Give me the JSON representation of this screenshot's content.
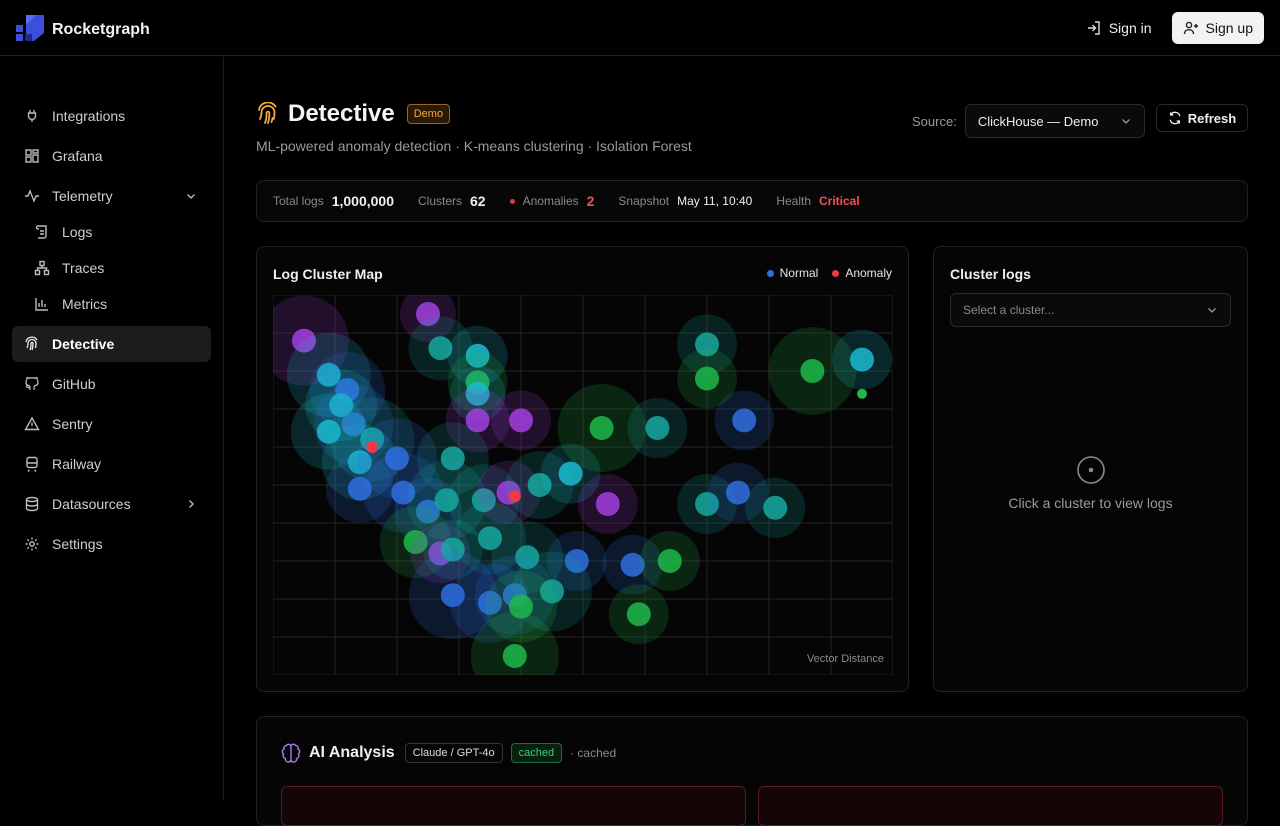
{
  "brand": {
    "name": "Rocketgraph"
  },
  "topnav": {
    "signin": "Sign in",
    "signup": "Sign up"
  },
  "sidebar": {
    "items": [
      {
        "label": "Integrations",
        "icon": "plug-icon"
      },
      {
        "label": "Grafana",
        "icon": "grid-icon"
      },
      {
        "label": "Telemetry",
        "icon": "activity-icon"
      },
      {
        "label": "Logs",
        "icon": "scroll-icon"
      },
      {
        "label": "Traces",
        "icon": "network-icon"
      },
      {
        "label": "Metrics",
        "icon": "bar-chart-icon"
      },
      {
        "label": "Detective",
        "icon": "fingerprint-icon"
      },
      {
        "label": "GitHub",
        "icon": "github-icon"
      },
      {
        "label": "Sentry",
        "icon": "triangle-icon"
      },
      {
        "label": "Railway",
        "icon": "train-icon"
      },
      {
        "label": "Datasources",
        "icon": "database-icon"
      },
      {
        "label": "Settings",
        "icon": "gear-icon"
      }
    ]
  },
  "page": {
    "title": "Detective",
    "badge": "Demo",
    "subtitle": "ML-powered anomaly detection · K-means clustering · Isolation Forest",
    "source_label": "Source:",
    "source_value": "ClickHouse — Demo",
    "refresh": "Refresh"
  },
  "stats": {
    "total_logs_label": "Total logs",
    "total_logs": "1,000,000",
    "clusters_label": "Clusters",
    "clusters": "62",
    "anomalies_label": "Anomalies",
    "anomalies": "2",
    "snapshot_label": "Snapshot",
    "snapshot": "May 11, 10:40",
    "health_label": "Health",
    "health": "Critical"
  },
  "map": {
    "title": "Log Cluster Map",
    "legend_normal": "Normal",
    "legend_anomaly": "Anomaly",
    "axis_note": "Vector Distance",
    "colors": {
      "purple": "#a23fe0",
      "cyan": "#1bbcd0",
      "green": "#1fb84a",
      "blue": "#2f6fe0",
      "teal": "#16a8a0",
      "anomaly": "#f03a44"
    }
  },
  "chart_data": {
    "type": "scatter",
    "xlabel": "",
    "ylabel": "",
    "annotation": "Vector Distance",
    "grid": true,
    "legend": "top-right",
    "series": [
      {
        "name": "Normal",
        "points": [
          [
            0.05,
            0.12,
            "purple",
            45
          ],
          [
            0.25,
            0.05,
            "purple",
            28
          ],
          [
            0.09,
            0.21,
            "cyan",
            42
          ],
          [
            0.27,
            0.14,
            "teal",
            32
          ],
          [
            0.33,
            0.16,
            "cyan",
            30
          ],
          [
            0.33,
            0.23,
            "green",
            30
          ],
          [
            0.33,
            0.26,
            "cyan",
            28
          ],
          [
            0.12,
            0.25,
            "blue",
            38
          ],
          [
            0.11,
            0.29,
            "cyan",
            36
          ],
          [
            0.13,
            0.34,
            "blue",
            40
          ],
          [
            0.09,
            0.36,
            "cyan",
            38
          ],
          [
            0.16,
            0.38,
            "teal",
            42
          ],
          [
            0.14,
            0.44,
            "cyan",
            38
          ],
          [
            0.2,
            0.43,
            "blue",
            40
          ],
          [
            0.33,
            0.33,
            "purple",
            32
          ],
          [
            0.4,
            0.33,
            "purple",
            30
          ],
          [
            0.29,
            0.43,
            "teal",
            36
          ],
          [
            0.14,
            0.51,
            "blue",
            34
          ],
          [
            0.21,
            0.52,
            "blue",
            40
          ],
          [
            0.25,
            0.57,
            "blue",
            34
          ],
          [
            0.28,
            0.54,
            "teal",
            40
          ],
          [
            0.34,
            0.54,
            "teal",
            36
          ],
          [
            0.38,
            0.52,
            "purple",
            32
          ],
          [
            0.43,
            0.5,
            "teal",
            34
          ],
          [
            0.48,
            0.47,
            "cyan",
            30
          ],
          [
            0.54,
            0.55,
            "purple",
            30
          ],
          [
            0.53,
            0.35,
            "green",
            44
          ],
          [
            0.62,
            0.35,
            "teal",
            30
          ],
          [
            0.7,
            0.13,
            "teal",
            30
          ],
          [
            0.7,
            0.22,
            "green",
            30
          ],
          [
            0.76,
            0.33,
            "blue",
            30
          ],
          [
            0.87,
            0.2,
            "green",
            44
          ],
          [
            0.95,
            0.17,
            "cyan",
            30
          ],
          [
            0.7,
            0.55,
            "teal",
            30
          ],
          [
            0.75,
            0.52,
            "blue",
            30
          ],
          [
            0.81,
            0.56,
            "teal",
            30
          ],
          [
            0.23,
            0.65,
            "green",
            36
          ],
          [
            0.27,
            0.68,
            "purple",
            30
          ],
          [
            0.29,
            0.67,
            "teal",
            30
          ],
          [
            0.35,
            0.64,
            "teal",
            36
          ],
          [
            0.41,
            0.69,
            "teal",
            36
          ],
          [
            0.49,
            0.7,
            "blue",
            30
          ],
          [
            0.58,
            0.71,
            "blue",
            30
          ],
          [
            0.64,
            0.7,
            "green",
            30
          ],
          [
            0.29,
            0.79,
            "blue",
            44
          ],
          [
            0.35,
            0.81,
            "blue",
            40
          ],
          [
            0.39,
            0.79,
            "blue",
            40
          ],
          [
            0.45,
            0.78,
            "teal",
            40
          ],
          [
            0.4,
            0.82,
            "green",
            36
          ],
          [
            0.59,
            0.84,
            "green",
            30
          ],
          [
            0.39,
            0.95,
            "green",
            44
          ]
        ]
      },
      {
        "name": "Anomaly",
        "points": [
          [
            0.16,
            0.4,
            "anomaly",
            6
          ],
          [
            0.39,
            0.53,
            "anomaly",
            6
          ],
          [
            0.95,
            0.26,
            "green",
            5
          ]
        ]
      }
    ]
  },
  "logs": {
    "title": "Cluster logs",
    "select_placeholder": "Select a cluster...",
    "empty_text": "Click a cluster to view logs"
  },
  "ai": {
    "title": "AI Analysis",
    "model": "Claude / GPT-4o",
    "cached_badge": "cached",
    "cached_note": "· cached"
  }
}
